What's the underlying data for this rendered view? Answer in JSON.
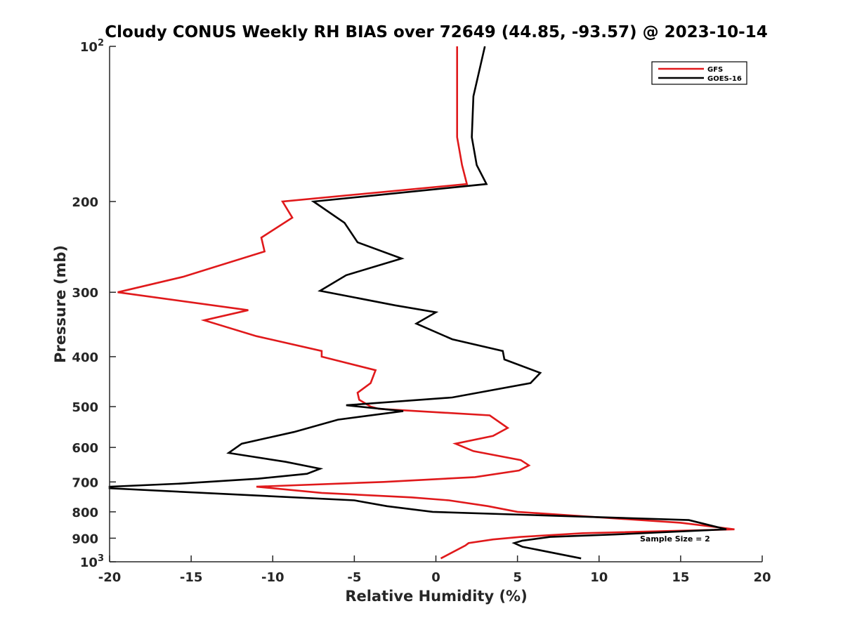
{
  "chart_data": {
    "type": "line",
    "title": "Cloudy CONUS Weekly RH BIAS over 72649 (44.85, -93.57) @ 2023-10-14",
    "xlabel": "Relative Humidity (%)",
    "ylabel": "Pressure (mb)",
    "xlim": [
      -20,
      20
    ],
    "ylim": [
      100,
      1000
    ],
    "y_scale": "log",
    "y_reversed": true,
    "grid": false,
    "x_ticks": [
      -20,
      -15,
      -10,
      -5,
      0,
      5,
      10,
      15,
      20
    ],
    "x_tick_labels": [
      "-20",
      "-15",
      "-10",
      "-5",
      "0",
      "5",
      "10",
      "15",
      "20"
    ],
    "y_ticks": [
      {
        "value": 100,
        "base": "10",
        "exp": "2"
      },
      {
        "value": 200,
        "label": "200"
      },
      {
        "value": 300,
        "label": "300"
      },
      {
        "value": 400,
        "label": "400"
      },
      {
        "value": 500,
        "label": "500"
      },
      {
        "value": 600,
        "label": "600"
      },
      {
        "value": 700,
        "label": "700"
      },
      {
        "value": 800,
        "label": "800"
      },
      {
        "value": 900,
        "label": "900"
      },
      {
        "value": 1000,
        "base": "10",
        "exp": "3"
      }
    ],
    "legend_position": "top-right",
    "annotation": "Sample Size = 2",
    "series": [
      {
        "name": "GFS",
        "color": "#e0191b",
        "points": [
          [
            1.3,
            100
          ],
          [
            1.3,
            125
          ],
          [
            1.3,
            150
          ],
          [
            1.6,
            170
          ],
          [
            1.9,
            185
          ],
          [
            -9.4,
            200
          ],
          [
            -8.8,
            215
          ],
          [
            -10.7,
            235
          ],
          [
            -10.5,
            250
          ],
          [
            -15.5,
            280
          ],
          [
            -19.5,
            300
          ],
          [
            -11.5,
            325
          ],
          [
            -14.2,
            340
          ],
          [
            -11.0,
            365
          ],
          [
            -7.0,
            390
          ],
          [
            -7.0,
            400
          ],
          [
            -3.7,
            425
          ],
          [
            -4.0,
            450
          ],
          [
            -4.8,
            470
          ],
          [
            -4.7,
            485
          ],
          [
            -4.0,
            500
          ],
          [
            -3.5,
            505
          ],
          [
            3.3,
            520
          ],
          [
            4.4,
            550
          ],
          [
            3.5,
            570
          ],
          [
            1.2,
            590
          ],
          [
            2.3,
            610
          ],
          [
            5.2,
            635
          ],
          [
            5.7,
            650
          ],
          [
            5.1,
            665
          ],
          [
            2.4,
            685
          ],
          [
            -3.2,
            700
          ],
          [
            -11.0,
            715
          ],
          [
            -7.0,
            735
          ],
          [
            -1.5,
            750
          ],
          [
            0.8,
            760
          ],
          [
            3.2,
            780
          ],
          [
            5.0,
            800
          ],
          [
            10.0,
            820
          ],
          [
            15.0,
            840
          ],
          [
            18.3,
            865
          ],
          [
            9.0,
            880
          ],
          [
            5.2,
            895
          ],
          [
            3.5,
            905
          ],
          [
            2.0,
            920
          ],
          [
            1.8,
            930
          ],
          [
            0.3,
            985
          ]
        ]
      },
      {
        "name": "GOES-16",
        "color": "#000000",
        "points": [
          [
            3.0,
            100
          ],
          [
            2.3,
            125
          ],
          [
            2.2,
            150
          ],
          [
            2.5,
            170
          ],
          [
            3.1,
            185
          ],
          [
            -7.5,
            200
          ],
          [
            -5.6,
            220
          ],
          [
            -4.8,
            240
          ],
          [
            -2.1,
            258
          ],
          [
            -5.5,
            278
          ],
          [
            -7.1,
            298
          ],
          [
            -2.5,
            318
          ],
          [
            0.0,
            328
          ],
          [
            -1.2,
            345
          ],
          [
            1.0,
            370
          ],
          [
            4.1,
            390
          ],
          [
            4.2,
            405
          ],
          [
            6.4,
            430
          ],
          [
            5.8,
            450
          ],
          [
            1.0,
            480
          ],
          [
            -5.5,
            497
          ],
          [
            -2.0,
            510
          ],
          [
            -6.0,
            530
          ],
          [
            -8.7,
            560
          ],
          [
            -11.9,
            590
          ],
          [
            -12.7,
            615
          ],
          [
            -9.2,
            640
          ],
          [
            -7.1,
            660
          ],
          [
            -7.9,
            675
          ],
          [
            -10.9,
            690
          ],
          [
            -15.6,
            705
          ],
          [
            -20.0,
            715
          ],
          [
            -20.0,
            720
          ],
          [
            -5.0,
            760
          ],
          [
            -3.0,
            780
          ],
          [
            -0.2,
            800
          ],
          [
            15.5,
            830
          ],
          [
            17.8,
            865
          ],
          [
            11.0,
            885
          ],
          [
            7.0,
            895
          ],
          [
            5.3,
            910
          ],
          [
            4.8,
            920
          ],
          [
            5.3,
            935
          ],
          [
            8.9,
            985
          ]
        ]
      }
    ]
  }
}
